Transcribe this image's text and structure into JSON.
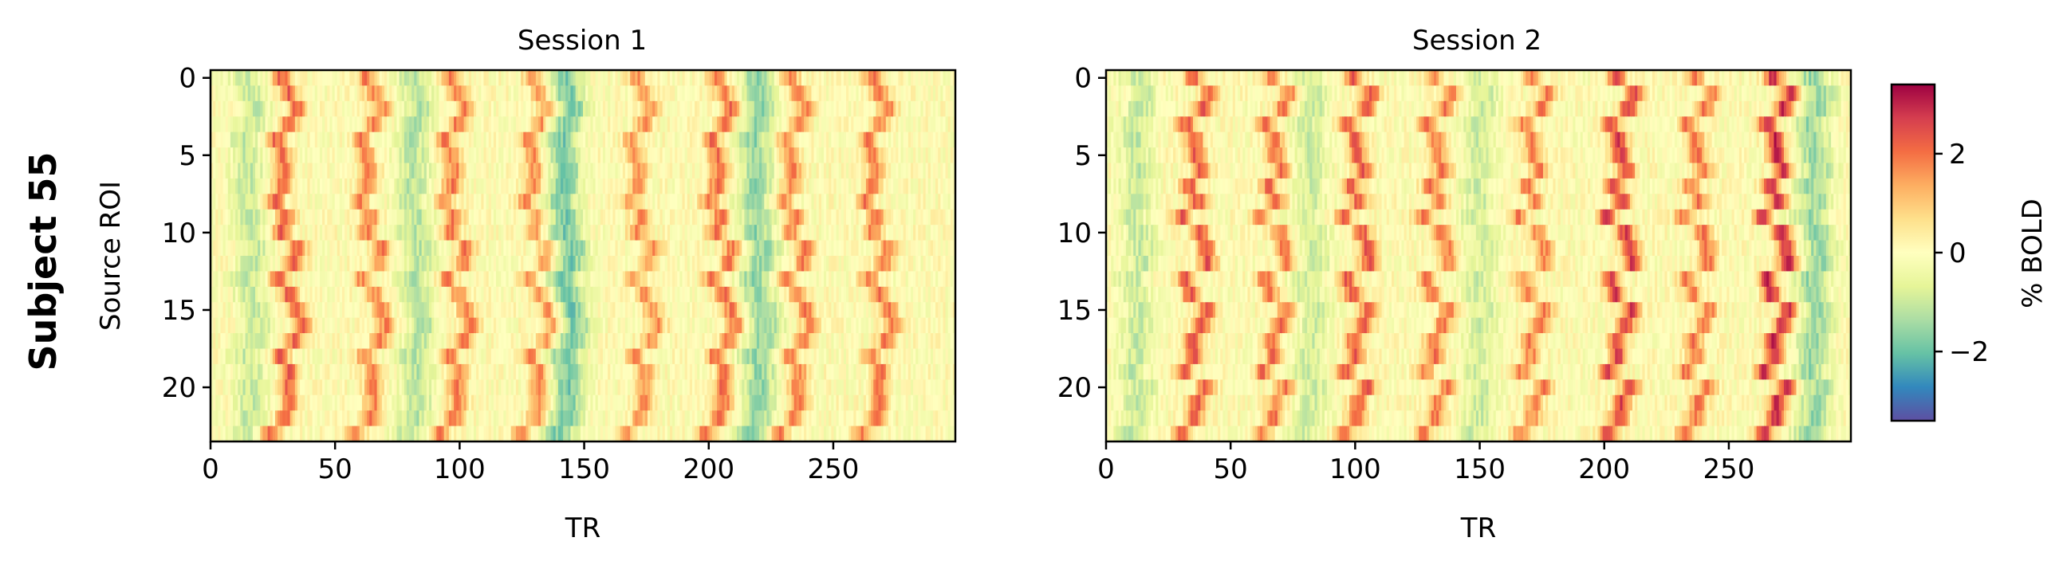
{
  "figure": {
    "row_label": "Subject 55",
    "colorbar": {
      "label": "% BOLD",
      "vmin": -3.4,
      "vmax": 3.4,
      "ticks": [
        -2,
        0,
        2
      ],
      "tick_labels": [
        "−2",
        "0",
        "2"
      ],
      "colormap": "Spectral_r",
      "colormap_stops": [
        "#5e4fa2",
        "#3288bd",
        "#66c2a5",
        "#abdda4",
        "#e6f598",
        "#ffffbf",
        "#fee08b",
        "#fdae61",
        "#f46d43",
        "#d53e4f",
        "#9e0142"
      ]
    }
  },
  "chart_data": [
    {
      "type": "heatmap",
      "title": "Session 1",
      "xlabel": "TR",
      "ylabel": "Source ROI",
      "n_rows": 24,
      "n_cols": 300,
      "xlim": [
        0,
        299
      ],
      "ylim": [
        23.5,
        -0.5
      ],
      "xticks": [
        0,
        50,
        100,
        150,
        200,
        250
      ],
      "xtick_labels": [
        "0",
        "50",
        "100",
        "150",
        "200",
        "250"
      ],
      "yticks": [
        0,
        5,
        10,
        15,
        20
      ],
      "ytick_labels": [
        "0",
        "5",
        "10",
        "15",
        "20"
      ],
      "peak_events": [
        {
          "tr": 30,
          "amp": 2.2
        },
        {
          "tr": 64,
          "amp": 1.8
        },
        {
          "tr": 98,
          "amp": 1.9
        },
        {
          "tr": 131,
          "amp": 1.7
        },
        {
          "tr": 173,
          "amp": 1.6
        },
        {
          "tr": 205,
          "amp": 2.0
        },
        {
          "tr": 235,
          "amp": 1.8
        },
        {
          "tr": 268,
          "amp": 1.9
        }
      ],
      "trough_events": [
        {
          "tr": 15,
          "amp": -1.0
        },
        {
          "tr": 82,
          "amp": -1.2
        },
        {
          "tr": 143,
          "amp": -1.8
        },
        {
          "tr": 220,
          "amp": -1.6
        }
      ]
    },
    {
      "type": "heatmap",
      "title": "Session 2",
      "xlabel": "TR",
      "ylabel": "",
      "n_rows": 24,
      "n_cols": 300,
      "xlim": [
        0,
        299
      ],
      "ylim": [
        23.5,
        -0.5
      ],
      "xticks": [
        0,
        50,
        100,
        150,
        200,
        250
      ],
      "xtick_labels": [
        "0",
        "50",
        "100",
        "150",
        "200",
        "250"
      ],
      "yticks": [
        0,
        5,
        10,
        15,
        20
      ],
      "ytick_labels": [
        "0",
        "5",
        "10",
        "15",
        "20"
      ],
      "peak_events": [
        {
          "tr": 36,
          "amp": 2.3
        },
        {
          "tr": 68,
          "amp": 2.0
        },
        {
          "tr": 101,
          "amp": 2.3
        },
        {
          "tr": 133,
          "amp": 1.9
        },
        {
          "tr": 172,
          "amp": 1.8
        },
        {
          "tr": 207,
          "amp": 2.6
        },
        {
          "tr": 238,
          "amp": 1.9
        },
        {
          "tr": 270,
          "amp": 2.9
        }
      ],
      "trough_events": [
        {
          "tr": 12,
          "amp": -1.0
        },
        {
          "tr": 82,
          "amp": -0.9
        },
        {
          "tr": 150,
          "amp": -0.9
        },
        {
          "tr": 285,
          "amp": -1.5
        }
      ]
    }
  ]
}
